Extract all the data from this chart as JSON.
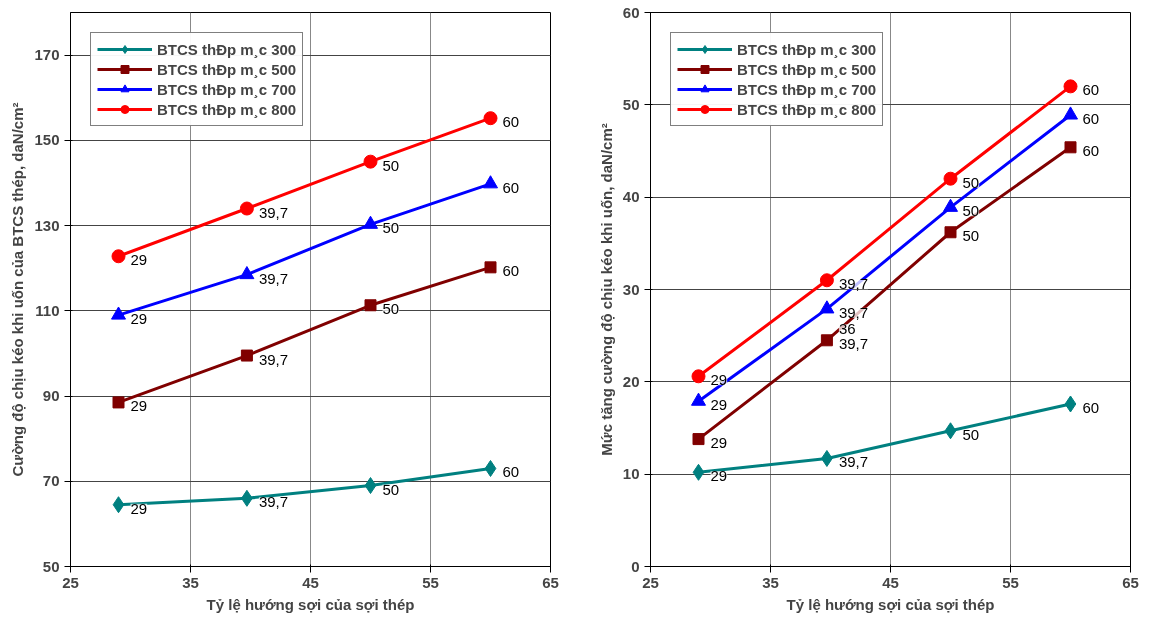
{
  "chart_data": [
    {
      "type": "line",
      "xlabel": "Tỷ lệ hướng sợi của sợi thép",
      "ylabel": "Cường độ chịu kéo khi uốn của BTCS thép, daN/cm²",
      "x": [
        29,
        39.7,
        50,
        60
      ],
      "xlim": [
        25,
        65
      ],
      "xticks": [
        25,
        35,
        45,
        55,
        65
      ],
      "ylim": [
        50,
        180
      ],
      "yticks": [
        50,
        70,
        90,
        110,
        130,
        150,
        170
      ],
      "grid": true,
      "legend": "top left",
      "series": [
        {
          "name": "BTCS thÐp m¸c 300",
          "color": "#008080",
          "marker": "diamond",
          "values": [
            64.5,
            66,
            69,
            73
          ]
        },
        {
          "name": "BTCS thÐp m¸c 500",
          "color": "#800000",
          "marker": "square",
          "values": [
            88.5,
            99.5,
            111.3,
            120.2
          ]
        },
        {
          "name": "BTCS thÐp m¸c 700",
          "color": "#0000ff",
          "marker": "triangle",
          "values": [
            109,
            118.5,
            130.3,
            139.8
          ]
        },
        {
          "name": "BTCS thÐp m¸c 800",
          "color": "#ff0000",
          "marker": "circle",
          "values": [
            122.8,
            134,
            145,
            155.2
          ]
        }
      ],
      "annotations": [
        {
          "text": "29",
          "x": 29,
          "y": 64.5
        },
        {
          "text": "39,7",
          "x": 39.7,
          "y": 66
        },
        {
          "text": "50",
          "x": 50,
          "y": 69
        },
        {
          "text": "60",
          "x": 60,
          "y": 73
        },
        {
          "text": "29",
          "x": 29,
          "y": 88.5
        },
        {
          "text": "39,7",
          "x": 39.7,
          "y": 99.5
        },
        {
          "text": "50",
          "x": 50,
          "y": 111.3
        },
        {
          "text": "60",
          "x": 60,
          "y": 120.2
        },
        {
          "text": "29",
          "x": 29,
          "y": 109
        },
        {
          "text": "39,7",
          "x": 39.7,
          "y": 118.5
        },
        {
          "text": "50",
          "x": 50,
          "y": 130.3
        },
        {
          "text": "60",
          "x": 60,
          "y": 139.8
        },
        {
          "text": "29",
          "x": 29,
          "y": 122.8
        },
        {
          "text": "39,7",
          "x": 39.7,
          "y": 134
        },
        {
          "text": "50",
          "x": 50,
          "y": 145
        },
        {
          "text": "60",
          "x": 60,
          "y": 155.2
        }
      ]
    },
    {
      "type": "line",
      "xlabel": "Tỷ lệ hướng sợi của sợi thép",
      "ylabel": "Mức tăng cường độ chịu kéo khi uốn, daN/cm²",
      "x": [
        29,
        39.7,
        50,
        60
      ],
      "xlim": [
        25,
        65
      ],
      "xticks": [
        25,
        35,
        45,
        55,
        65
      ],
      "ylim": [
        0,
        60
      ],
      "yticks": [
        0,
        10,
        20,
        30,
        40,
        50,
        60
      ],
      "grid": true,
      "legend": "top left",
      "series": [
        {
          "name": "BTCS thÐp m¸c 300",
          "color": "#008080",
          "marker": "diamond",
          "values": [
            10.2,
            11.7,
            14.7,
            17.6
          ]
        },
        {
          "name": "BTCS thÐp m¸c 500",
          "color": "#800000",
          "marker": "square",
          "values": [
            13.8,
            24.5,
            36.2,
            45.4
          ]
        },
        {
          "name": "BTCS thÐp m¸c 700",
          "color": "#0000ff",
          "marker": "triangle",
          "values": [
            17.9,
            27.9,
            38.9,
            48.9
          ]
        },
        {
          "name": "BTCS thÐp m¸c 800",
          "color": "#ff0000",
          "marker": "circle",
          "values": [
            20.6,
            31,
            42,
            52
          ]
        }
      ],
      "annotations": [
        {
          "text": "29",
          "x": 29,
          "y": 10.2
        },
        {
          "text": "39,7",
          "x": 39.7,
          "y": 11.7
        },
        {
          "text": "50",
          "x": 50,
          "y": 14.7
        },
        {
          "text": "60",
          "x": 60,
          "y": 17.6
        },
        {
          "text": "29",
          "x": 29,
          "y": 13.8
        },
        {
          "text": "39,7",
          "x": 39.7,
          "y": 24.5
        },
        {
          "text": "50",
          "x": 50,
          "y": 36.2
        },
        {
          "text": "60",
          "x": 60,
          "y": 45.4
        },
        {
          "text": "29",
          "x": 29,
          "y": 17.9
        },
        {
          "text": "39,7",
          "x": 39.7,
          "y": 27.9
        },
        {
          "text": "50",
          "x": 50,
          "y": 38.9
        },
        {
          "text": "60",
          "x": 60,
          "y": 48.9
        },
        {
          "text": "29",
          "x": 29,
          "y": 20.6
        },
        {
          "text": "39,7",
          "x": 39.7,
          "y": 31
        },
        {
          "text": "50",
          "x": 50,
          "y": 42
        },
        {
          "text": "60",
          "x": 60,
          "y": 52
        },
        {
          "text": "36",
          "x": 39.7,
          "y": 24.5
        }
      ]
    }
  ]
}
